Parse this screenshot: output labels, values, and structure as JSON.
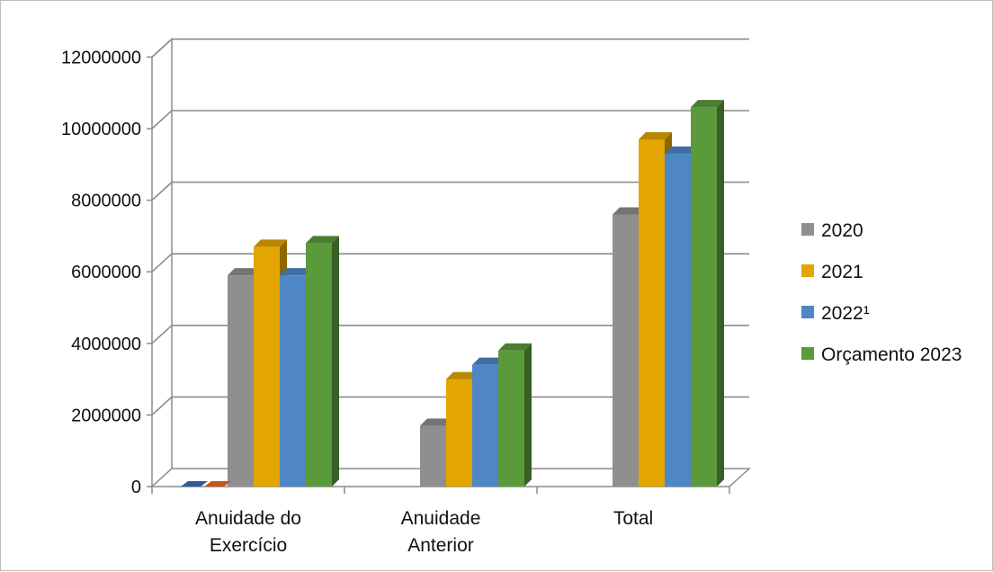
{
  "chart_data": {
    "type": "bar",
    "title": "",
    "xlabel": "",
    "ylabel": "",
    "ylim": [
      0,
      12000000
    ],
    "y_ticks": [
      "0",
      "2000000",
      "4000000",
      "6000000",
      "8000000",
      "10000000",
      "12000000"
    ],
    "categories": [
      [
        "Anuidade do",
        "Exercício"
      ],
      [
        "Anuidade",
        "Anterior"
      ],
      [
        "Total"
      ]
    ],
    "grid": true,
    "legend_position": "right",
    "three_d": true,
    "extra_series": [
      {
        "values": [
          0,
          null,
          null
        ],
        "color": "#2e5a9c"
      },
      {
        "values": [
          0,
          null,
          null
        ],
        "color": "#c5561b"
      }
    ],
    "series": [
      {
        "name": "2020",
        "color": "#8f8f8f",
        "values": [
          5900000,
          1700000,
          7600000
        ]
      },
      {
        "name": "2021",
        "color": "#e3a500",
        "values": [
          6700000,
          3000000,
          9700000
        ]
      },
      {
        "name": "2022¹",
        "color": "#4f86c6",
        "values": [
          5900000,
          3400000,
          9300000
        ]
      },
      {
        "name": "Orçamento 2023",
        "color": "#5a9a3a",
        "values": [
          6800000,
          3800000,
          10600000
        ]
      }
    ]
  }
}
